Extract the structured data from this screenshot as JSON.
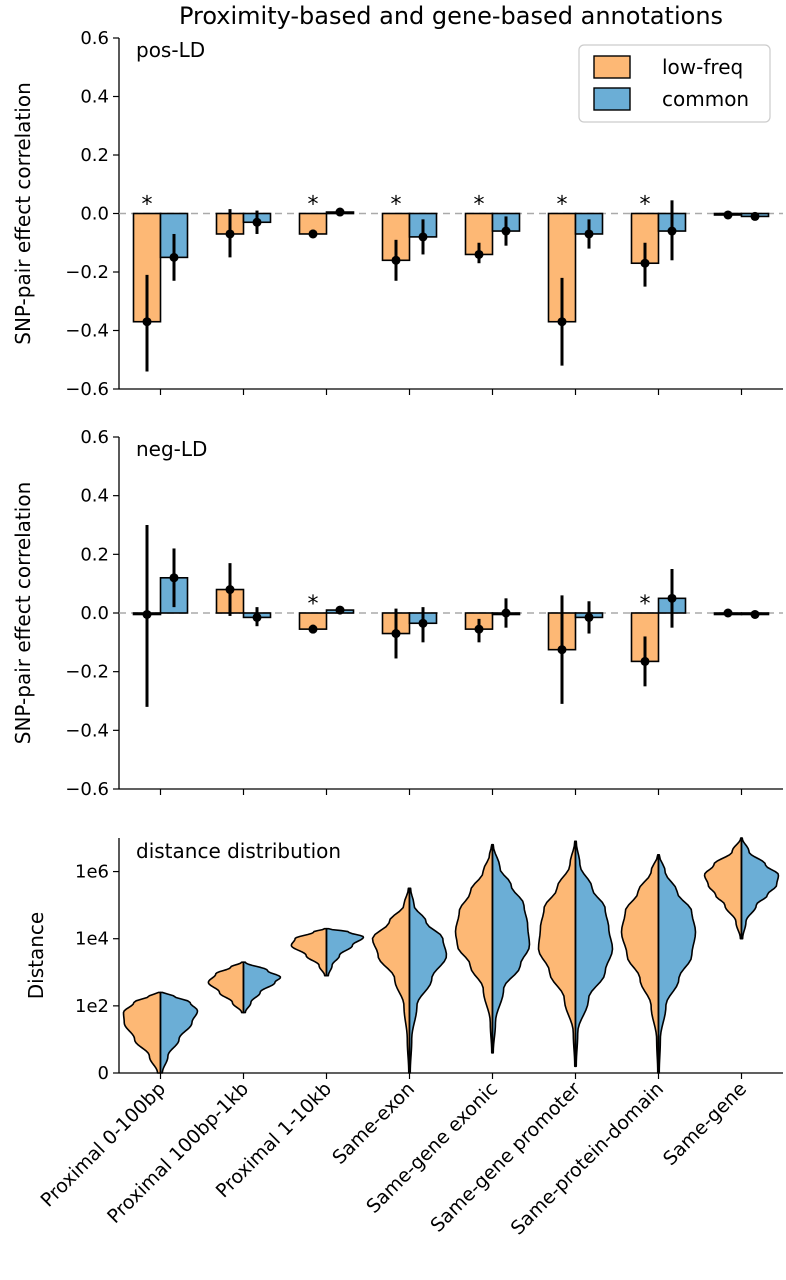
{
  "title": "Proximity-based and gene-based annotations",
  "colors": {
    "low_freq": "#FDB875",
    "common": "#6BAED6",
    "zero_line": "#AAAAAA"
  },
  "legend": {
    "items": [
      "low-freq",
      "common"
    ],
    "placement": "top-right of first panel"
  },
  "categories": [
    "Proximal 0-100bp",
    "Proximal 100bp-1kb",
    "Proximal 1-10kb",
    "Same-exon",
    "Same-gene exonic",
    "Same-gene promoter",
    "Same-protein-domain",
    "Same-gene"
  ],
  "chart_data": [
    {
      "type": "bar",
      "panel_label": "pos-LD",
      "ylabel": "SNP-pair effect correlation",
      "ylim": [
        -0.6,
        0.6
      ],
      "yticks": [
        "−0.6",
        "−0.4",
        "−0.2",
        "0.0",
        "0.2",
        "0.4",
        "0.6"
      ],
      "series": [
        {
          "name": "low-freq",
          "values": [
            -0.37,
            -0.07,
            -0.07,
            -0.16,
            -0.14,
            -0.37,
            -0.17,
            -0.005
          ],
          "error": [
            [
              -0.54,
              -0.21
            ],
            [
              -0.15,
              0.015
            ],
            [
              -0.08,
              -0.055
            ],
            [
              -0.23,
              -0.09
            ],
            [
              -0.17,
              -0.1
            ],
            [
              -0.52,
              -0.22
            ],
            [
              -0.25,
              -0.1
            ],
            [
              -0.01,
              0.0
            ]
          ]
        },
        {
          "name": "common",
          "values": [
            -0.15,
            -0.03,
            0.005,
            -0.08,
            -0.06,
            -0.07,
            -0.06,
            -0.01
          ],
          "error": [
            [
              -0.23,
              -0.07
            ],
            [
              -0.07,
              0.01
            ],
            [
              -0.005,
              0.015
            ],
            [
              -0.14,
              -0.02
            ],
            [
              -0.11,
              -0.01
            ],
            [
              -0.12,
              -0.02
            ],
            [
              -0.16,
              0.045
            ],
            [
              -0.015,
              -0.005
            ]
          ]
        }
      ],
      "significance": [
        "*",
        "",
        "*",
        "*",
        "*",
        "*",
        "*",
        ""
      ]
    },
    {
      "type": "bar",
      "panel_label": "neg-LD",
      "ylabel": "SNP-pair effect correlation",
      "ylim": [
        -0.6,
        0.6
      ],
      "yticks": [
        "−0.6",
        "−0.4",
        "−0.2",
        "0.0",
        "0.2",
        "0.4",
        "0.6"
      ],
      "series": [
        {
          "name": "low-freq",
          "values": [
            -0.005,
            0.08,
            -0.055,
            -0.07,
            -0.055,
            -0.125,
            -0.165,
            0.0
          ],
          "error": [
            [
              -0.32,
              0.3
            ],
            [
              -0.01,
              0.17
            ],
            [
              -0.07,
              -0.04
            ],
            [
              -0.155,
              0.015
            ],
            [
              -0.1,
              -0.02
            ],
            [
              -0.31,
              0.06
            ],
            [
              -0.25,
              -0.08
            ],
            [
              -0.005,
              0.005
            ]
          ]
        },
        {
          "name": "common",
          "values": [
            0.12,
            -0.015,
            0.01,
            -0.035,
            0.0,
            -0.015,
            0.05,
            -0.005
          ],
          "error": [
            [
              0.02,
              0.22
            ],
            [
              -0.045,
              0.02
            ],
            [
              0.0,
              0.02
            ],
            [
              -0.1,
              0.02
            ],
            [
              -0.05,
              0.05
            ],
            [
              -0.07,
              0.04
            ],
            [
              -0.05,
              0.15
            ],
            [
              -0.01,
              0.0
            ]
          ]
        }
      ],
      "significance": [
        "",
        "",
        "*",
        "",
        "",
        "",
        "*",
        ""
      ]
    },
    {
      "type": "violin",
      "panel_label": "distance distribution",
      "ylabel": "Distance",
      "scale": "log10(1 + distance)",
      "ylim_log10": [
        0,
        7
      ],
      "yticks": [
        {
          "log10": 0,
          "label": "0"
        },
        {
          "log10": 2,
          "label": "1e2"
        },
        {
          "log10": 4,
          "label": "1e4"
        },
        {
          "log10": 6,
          "label": "1e6"
        }
      ],
      "violins": [
        {
          "range_log10": [
            0,
            2.4
          ],
          "low_freq": [
            [
              0,
              0.08
            ],
            [
              0.5,
              0.3
            ],
            [
              1.0,
              0.7
            ],
            [
              1.5,
              0.98
            ],
            [
              1.8,
              1.0
            ],
            [
              2.1,
              0.72
            ],
            [
              2.3,
              0.3
            ],
            [
              2.4,
              0.05
            ]
          ],
          "common": [
            [
              0,
              0.05
            ],
            [
              0.5,
              0.2
            ],
            [
              1.0,
              0.5
            ],
            [
              1.5,
              0.85
            ],
            [
              1.85,
              1.0
            ],
            [
              2.1,
              0.8
            ],
            [
              2.3,
              0.35
            ],
            [
              2.4,
              0.05
            ]
          ]
        },
        {
          "range_log10": [
            1.8,
            3.3
          ],
          "low_freq": [
            [
              1.8,
              0.05
            ],
            [
              2.1,
              0.3
            ],
            [
              2.4,
              0.65
            ],
            [
              2.7,
              0.95
            ],
            [
              2.95,
              0.75
            ],
            [
              3.15,
              0.35
            ],
            [
              3.3,
              0.05
            ]
          ],
          "common": [
            [
              1.8,
              0.05
            ],
            [
              2.1,
              0.2
            ],
            [
              2.4,
              0.45
            ],
            [
              2.7,
              0.85
            ],
            [
              2.85,
              1.0
            ],
            [
              3.05,
              0.65
            ],
            [
              3.3,
              0.05
            ]
          ]
        },
        {
          "range_log10": [
            2.9,
            4.3
          ],
          "low_freq": [
            [
              2.9,
              0.05
            ],
            [
              3.2,
              0.2
            ],
            [
              3.5,
              0.55
            ],
            [
              3.8,
              0.95
            ],
            [
              4.0,
              0.85
            ],
            [
              4.2,
              0.35
            ],
            [
              4.3,
              0.05
            ]
          ],
          "common": [
            [
              2.9,
              0.05
            ],
            [
              3.2,
              0.15
            ],
            [
              3.5,
              0.35
            ],
            [
              3.8,
              0.7
            ],
            [
              4.05,
              1.0
            ],
            [
              4.2,
              0.6
            ],
            [
              4.3,
              0.05
            ]
          ]
        },
        {
          "range_log10": [
            0,
            5.5
          ],
          "low_freq": [
            [
              0,
              0.02
            ],
            [
              1.0,
              0.06
            ],
            [
              2.0,
              0.15
            ],
            [
              2.8,
              0.4
            ],
            [
              3.5,
              0.85
            ],
            [
              4.0,
              1.0
            ],
            [
              4.5,
              0.55
            ],
            [
              5.0,
              0.15
            ],
            [
              5.5,
              0.03
            ]
          ],
          "common": [
            [
              0,
              0.02
            ],
            [
              1.0,
              0.06
            ],
            [
              2.0,
              0.2
            ],
            [
              2.8,
              0.6
            ],
            [
              3.5,
              1.0
            ],
            [
              4.0,
              0.9
            ],
            [
              4.5,
              0.45
            ],
            [
              5.0,
              0.12
            ],
            [
              5.5,
              0.03
            ]
          ]
        },
        {
          "range_log10": [
            0.6,
            6.8
          ],
          "low_freq": [
            [
              0.6,
              0.02
            ],
            [
              1.5,
              0.06
            ],
            [
              2.5,
              0.25
            ],
            [
              3.2,
              0.6
            ],
            [
              3.8,
              0.95
            ],
            [
              4.2,
              1.0
            ],
            [
              4.8,
              0.9
            ],
            [
              5.4,
              0.6
            ],
            [
              6.0,
              0.25
            ],
            [
              6.5,
              0.08
            ],
            [
              6.8,
              0.02
            ]
          ],
          "common": [
            [
              0.6,
              0.02
            ],
            [
              1.5,
              0.08
            ],
            [
              2.5,
              0.3
            ],
            [
              3.2,
              0.75
            ],
            [
              3.8,
              1.0
            ],
            [
              4.4,
              0.95
            ],
            [
              5.0,
              0.85
            ],
            [
              5.6,
              0.5
            ],
            [
              6.1,
              0.2
            ],
            [
              6.8,
              0.02
            ]
          ]
        },
        {
          "range_log10": [
            0.2,
            6.9
          ],
          "low_freq": [
            [
              0.2,
              0.02
            ],
            [
              1.2,
              0.06
            ],
            [
              2.2,
              0.3
            ],
            [
              3.0,
              0.7
            ],
            [
              3.7,
              1.0
            ],
            [
              4.3,
              0.95
            ],
            [
              4.9,
              0.85
            ],
            [
              5.5,
              0.5
            ],
            [
              6.2,
              0.15
            ],
            [
              6.9,
              0.02
            ]
          ],
          "common": [
            [
              0.2,
              0.02
            ],
            [
              1.2,
              0.06
            ],
            [
              2.2,
              0.35
            ],
            [
              3.0,
              0.8
            ],
            [
              3.7,
              1.0
            ],
            [
              4.3,
              0.9
            ],
            [
              4.9,
              0.8
            ],
            [
              5.5,
              0.45
            ],
            [
              6.2,
              0.12
            ],
            [
              6.9,
              0.02
            ]
          ]
        },
        {
          "range_log10": [
            0,
            6.5
          ],
          "low_freq": [
            [
              0,
              0.02
            ],
            [
              1.0,
              0.05
            ],
            [
              2.0,
              0.2
            ],
            [
              2.8,
              0.5
            ],
            [
              3.5,
              0.85
            ],
            [
              4.2,
              1.0
            ],
            [
              4.8,
              0.9
            ],
            [
              5.4,
              0.55
            ],
            [
              6.0,
              0.2
            ],
            [
              6.5,
              0.02
            ]
          ],
          "common": [
            [
              0,
              0.02
            ],
            [
              1.0,
              0.05
            ],
            [
              2.0,
              0.2
            ],
            [
              2.8,
              0.55
            ],
            [
              3.5,
              0.9
            ],
            [
              4.2,
              1.0
            ],
            [
              4.8,
              0.9
            ],
            [
              5.4,
              0.5
            ],
            [
              6.0,
              0.18
            ],
            [
              6.5,
              0.02
            ]
          ]
        },
        {
          "range_log10": [
            4.0,
            7.0
          ],
          "low_freq": [
            [
              4.0,
              0.03
            ],
            [
              4.5,
              0.15
            ],
            [
              5.0,
              0.45
            ],
            [
              5.3,
              0.7
            ],
            [
              5.6,
              0.9
            ],
            [
              5.9,
              1.0
            ],
            [
              6.2,
              0.75
            ],
            [
              6.6,
              0.25
            ],
            [
              7.0,
              0.02
            ]
          ],
          "common": [
            [
              4.0,
              0.03
            ],
            [
              4.5,
              0.12
            ],
            [
              5.0,
              0.4
            ],
            [
              5.3,
              0.7
            ],
            [
              5.6,
              0.95
            ],
            [
              5.9,
              1.0
            ],
            [
              6.2,
              0.65
            ],
            [
              6.6,
              0.2
            ],
            [
              7.0,
              0.02
            ]
          ]
        }
      ]
    }
  ]
}
